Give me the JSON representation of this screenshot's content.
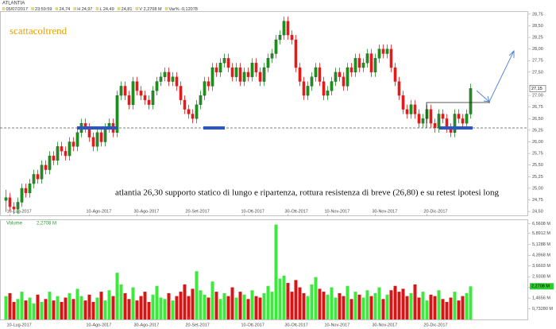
{
  "header": {
    "symbol": "ATLANTIA",
    "items": [
      "05/07/2017",
      "23:59:59",
      "24,74",
      "H 24,97",
      "L 24,49",
      "24,81",
      "V 2,2708 M",
      "Var% -0,12078"
    ]
  },
  "annotations": {
    "brand": "scattacoltrend",
    "note": "atlantia 26,30 supporto statico di lungo e ripartenza, rottura resistenza di breve (26,80) e su retest ipotesi long"
  },
  "chart_data": {
    "type": "candlestick",
    "up_color": "#1f8f1f",
    "down_color": "#e31b1b",
    "xlim": [
      -1.5,
      131.5
    ],
    "xticks": [
      {
        "value": 1,
        "label": "10-Lug-2017"
      },
      {
        "value": 21,
        "label": "10-Ago-2017"
      },
      {
        "value": 33,
        "label": "30-Ago-2017"
      },
      {
        "value": 46,
        "label": "20-Set-2017"
      },
      {
        "value": 60,
        "label": "10-Ott-2017"
      },
      {
        "value": 71,
        "label": "30-Ott-2017"
      },
      {
        "value": 81,
        "label": "10-Nov-2017"
      },
      {
        "value": 93,
        "label": "30-Nov-2017"
      },
      {
        "value": 106,
        "label": "20-Dic-2017"
      }
    ],
    "ylim": [
      24.4,
      28.85
    ],
    "yticks": [
      {
        "value": 24.5,
        "label": "24,50"
      },
      {
        "value": 24.75,
        "label": "24,75"
      },
      {
        "value": 25,
        "label": "25,00"
      },
      {
        "value": 25.25,
        "label": "25,25"
      },
      {
        "value": 25.5,
        "label": "25,50"
      },
      {
        "value": 25.75,
        "label": "25,75"
      },
      {
        "value": 26,
        "label": "26,00"
      },
      {
        "value": 26.25,
        "label": "26,25"
      },
      {
        "value": 26.5,
        "label": "26,50"
      },
      {
        "value": 26.75,
        "label": "26,75"
      },
      {
        "value": 27,
        "label": "27,00"
      },
      {
        "value": 27.5,
        "label": "27,50"
      },
      {
        "value": 27.75,
        "label": "27,75"
      },
      {
        "value": 28,
        "label": "28,00"
      },
      {
        "value": 28.25,
        "label": "28,25"
      },
      {
        "value": 28.5,
        "label": "28,50"
      },
      {
        "value": 28.75,
        "label": "28,75"
      }
    ],
    "last_price_label": "27,15",
    "open": [
      24.74,
      24.8,
      24.6,
      24.55,
      24.7,
      25.0,
      24.9,
      25.1,
      25.3,
      25.2,
      25.5,
      25.4,
      25.7,
      25.6,
      25.9,
      25.8,
      25.7,
      26.0,
      25.9,
      26.2,
      26.4,
      26.3,
      26.1,
      25.9,
      26.2,
      26.0,
      26.3,
      26.4,
      26.2,
      27.0,
      27.2,
      27.0,
      26.8,
      27.3,
      27.1,
      27.0,
      26.9,
      26.8,
      27.1,
      27.3,
      27.4,
      27.5,
      27.3,
      27.4,
      27.2,
      26.9,
      26.7,
      26.6,
      26.5,
      26.8,
      27.0,
      27.3,
      27.2,
      27.6,
      27.5,
      27.7,
      27.8,
      27.6,
      27.4,
      27.6,
      27.3,
      27.5,
      27.4,
      27.7,
      27.5,
      27.3,
      27.6,
      27.8,
      27.9,
      28.2,
      28.3,
      28.6,
      28.3,
      28.2,
      27.6,
      27.3,
      27.0,
      27.2,
      27.4,
      27.6,
      27.3,
      27.0,
      27.1,
      27.3,
      27.5,
      27.4,
      27.2,
      27.6,
      27.5,
      27.8,
      27.6,
      27.7,
      27.9,
      27.5,
      27.8,
      28.0,
      27.9,
      28.0,
      27.6,
      27.3,
      27.0,
      26.7,
      26.6,
      26.8,
      26.6,
      26.4,
      26.5,
      26.7,
      26.4,
      26.3,
      26.6,
      26.5,
      26.3,
      26.2,
      26.6,
      26.5,
      26.4,
      26.6
    ],
    "high": [
      24.97,
      24.9,
      24.7,
      24.8,
      25.1,
      25.1,
      25.2,
      25.4,
      25.4,
      25.6,
      25.6,
      25.8,
      25.8,
      26.0,
      26.0,
      25.9,
      26.1,
      26.1,
      26.3,
      26.5,
      26.5,
      26.4,
      26.2,
      26.3,
      26.3,
      26.4,
      26.5,
      26.5,
      27.1,
      27.3,
      27.3,
      27.1,
      27.4,
      27.4,
      27.2,
      27.1,
      27.0,
      27.2,
      27.4,
      27.5,
      27.6,
      27.6,
      27.5,
      27.5,
      27.3,
      27.0,
      26.8,
      26.7,
      26.9,
      27.1,
      27.4,
      27.4,
      27.7,
      27.7,
      27.8,
      27.9,
      27.9,
      27.7,
      27.7,
      27.7,
      27.6,
      27.6,
      27.8,
      27.8,
      27.6,
      27.7,
      27.9,
      28.0,
      28.3,
      28.4,
      28.7,
      28.7,
      28.4,
      28.3,
      27.7,
      27.4,
      27.3,
      27.5,
      27.7,
      27.7,
      27.4,
      27.2,
      27.4,
      27.6,
      27.6,
      27.5,
      27.7,
      27.7,
      27.9,
      27.9,
      27.8,
      28.0,
      28.0,
      27.9,
      28.1,
      28.1,
      28.1,
      28.1,
      27.7,
      27.4,
      27.1,
      26.8,
      26.9,
      26.9,
      26.7,
      26.6,
      26.8,
      26.8,
      26.5,
      26.7,
      26.7,
      26.6,
      26.4,
      26.7,
      26.7,
      26.6,
      26.7,
      27.25
    ],
    "low": [
      24.49,
      24.5,
      24.45,
      24.45,
      24.6,
      24.8,
      24.8,
      25.0,
      25.1,
      25.1,
      25.3,
      25.3,
      25.5,
      25.5,
      25.7,
      25.6,
      25.6,
      25.8,
      25.8,
      26.1,
      26.2,
      26.0,
      25.8,
      25.8,
      25.9,
      25.9,
      26.2,
      26.1,
      26.1,
      26.9,
      26.9,
      26.7,
      26.7,
      27.0,
      26.9,
      26.8,
      26.7,
      26.7,
      27.0,
      27.2,
      27.3,
      27.2,
      27.2,
      27.1,
      26.8,
      26.6,
      26.5,
      26.4,
      26.4,
      26.7,
      26.9,
      27.1,
      27.1,
      27.4,
      27.4,
      27.6,
      27.5,
      27.3,
      27.3,
      27.2,
      27.2,
      27.3,
      27.3,
      27.4,
      27.2,
      27.2,
      27.5,
      27.7,
      27.8,
      28.1,
      28.2,
      28.2,
      28.1,
      27.5,
      27.2,
      26.9,
      26.9,
      27.1,
      27.3,
      27.2,
      26.9,
      26.9,
      27.0,
      27.2,
      27.3,
      27.1,
      27.1,
      27.4,
      27.4,
      27.5,
      27.5,
      27.6,
      27.4,
      27.4,
      27.7,
      27.8,
      27.8,
      27.5,
      27.2,
      26.9,
      26.6,
      26.5,
      26.5,
      26.5,
      26.3,
      26.3,
      26.4,
      26.3,
      26.2,
      26.2,
      26.4,
      26.2,
      26.1,
      26.1,
      26.4,
      26.3,
      26.3,
      26.5
    ],
    "close": [
      24.8,
      24.6,
      24.55,
      24.7,
      25.0,
      24.9,
      25.1,
      25.3,
      25.2,
      25.5,
      25.4,
      25.7,
      25.6,
      25.9,
      25.8,
      25.7,
      26.0,
      25.9,
      26.2,
      26.4,
      26.3,
      26.1,
      25.9,
      26.2,
      26.0,
      26.3,
      26.4,
      26.2,
      27.0,
      27.2,
      27.0,
      26.8,
      27.3,
      27.1,
      27.0,
      26.9,
      26.8,
      27.1,
      27.3,
      27.4,
      27.5,
      27.3,
      27.4,
      27.2,
      26.9,
      26.7,
      26.6,
      26.5,
      26.8,
      27.0,
      27.3,
      27.2,
      27.6,
      27.5,
      27.7,
      27.8,
      27.6,
      27.4,
      27.6,
      27.3,
      27.5,
      27.4,
      27.7,
      27.5,
      27.3,
      27.6,
      27.8,
      27.9,
      28.2,
      28.3,
      28.6,
      28.3,
      28.2,
      27.6,
      27.3,
      27.0,
      27.2,
      27.4,
      27.6,
      27.3,
      27.0,
      27.1,
      27.3,
      27.5,
      27.4,
      27.2,
      27.6,
      27.5,
      27.8,
      27.6,
      27.7,
      27.9,
      27.5,
      27.8,
      28.0,
      27.9,
      28.0,
      27.6,
      27.3,
      27.0,
      26.7,
      26.6,
      26.8,
      26.6,
      26.4,
      26.5,
      26.7,
      26.4,
      26.3,
      26.6,
      26.5,
      26.3,
      26.2,
      26.6,
      26.5,
      26.4,
      26.6,
      27.15
    ],
    "volume": {
      "label": "Volume",
      "value_label": "2,2708 M",
      "up_color": "#3ee83e",
      "down_color": "#d41616",
      "ylim": [
        0,
        6.75
      ],
      "yticks": [
        {
          "value": 0.7328,
          "label": "0,73280 M"
        },
        {
          "value": 1.4656,
          "label": "1,4656 M"
        },
        {
          "value": 2.198,
          "label": "2,1980 M"
        },
        {
          "value": 2.9308,
          "label": "2,9308 M"
        },
        {
          "value": 3.6603,
          "label": "3,6603 M"
        },
        {
          "value": 4.3968,
          "label": "4,3968 M"
        },
        {
          "value": 5.1288,
          "label": "5,1288 M"
        },
        {
          "value": 5.8912,
          "label": "5,8912 M"
        },
        {
          "value": 6.5608,
          "label": "6,5608 M"
        }
      ],
      "values": [
        1.6,
        1.8,
        1.2,
        1.4,
        1.9,
        1.3,
        1.5,
        1.1,
        1.7,
        1.2,
        1.4,
        1.9,
        1.3,
        1.6,
        1.2,
        1.5,
        1.8,
        1.4,
        2.1,
        1.6,
        1.3,
        1.7,
        1.2,
        1.5,
        1.9,
        1.3,
        2.0,
        1.6,
        3.2,
        2.4,
        1.8,
        1.4,
        2.2,
        1.3,
        1.6,
        1.9,
        1.2,
        1.7,
        2.3,
        1.5,
        1.4,
        1.8,
        1.3,
        1.6,
        1.9,
        2.4,
        1.6,
        2.1,
        3.3,
        2.0,
        1.7,
        1.5,
        2.6,
        1.9,
        1.4,
        1.8,
        1.6,
        2.2,
        1.5,
        1.9,
        1.7,
        1.4,
        2.0,
        1.6,
        1.5,
        1.8,
        2.3,
        1.9,
        6.5,
        2.8,
        3.0,
        2.5,
        1.9,
        2.7,
        2.2,
        1.8,
        1.6,
        2.4,
        2.9,
        2.1,
        1.9,
        1.7,
        2.2,
        1.5,
        1.8,
        1.6,
        2.3,
        1.4,
        1.9,
        1.7,
        1.5,
        2.0,
        1.6,
        1.8,
        2.2,
        1.4,
        1.7,
        2.0,
        2.3,
        1.9,
        2.1,
        1.6,
        1.8,
        2.4,
        1.5,
        1.9,
        1.3,
        1.7,
        1.6,
        2.0,
        1.4,
        1.2,
        1.5,
        1.9,
        1.3,
        1.6,
        1.8,
        2.2708
      ]
    }
  }
}
